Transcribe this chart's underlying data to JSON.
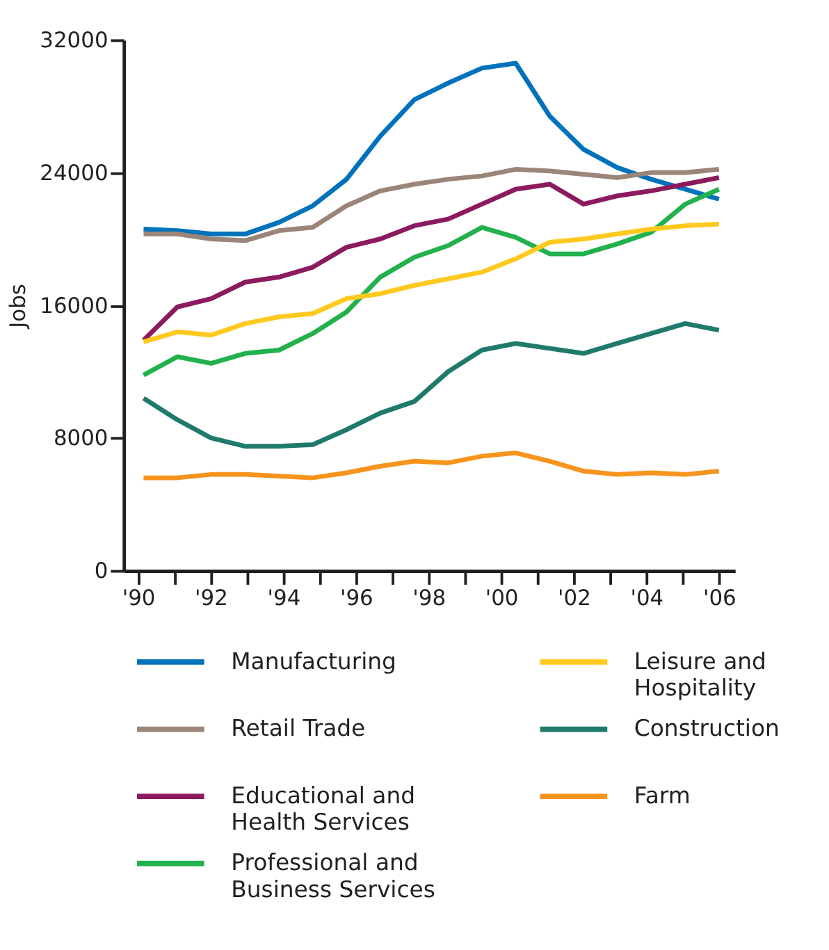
{
  "chart_data": {
    "type": "line",
    "ylabel": "Jobs",
    "x": [
      1990.15,
      1991.08,
      1992.01,
      1992.95,
      1993.88,
      1994.81,
      1995.74,
      1996.67,
      1997.61,
      1998.54,
      1999.47,
      2000.4,
      2001.34,
      2002.27,
      2003.2,
      2004.13,
      2005.07,
      2006.0
    ],
    "xlim": [
      1989.6,
      2006.44
    ],
    "xticks": [
      {
        "value": 1990,
        "label": "'90"
      },
      {
        "value": 1991,
        "label": null
      },
      {
        "value": 1992,
        "label": "'92"
      },
      {
        "value": 1993,
        "label": null
      },
      {
        "value": 1994,
        "label": "'94"
      },
      {
        "value": 1995,
        "label": null
      },
      {
        "value": 1996,
        "label": "'96"
      },
      {
        "value": 1997,
        "label": null
      },
      {
        "value": 1998,
        "label": "'98"
      },
      {
        "value": 1999,
        "label": null
      },
      {
        "value": 2000,
        "label": "'00"
      },
      {
        "value": 2001,
        "label": null
      },
      {
        "value": 2002,
        "label": "'02"
      },
      {
        "value": 2003,
        "label": null
      },
      {
        "value": 2004,
        "label": "'04"
      },
      {
        "value": 2005,
        "label": null
      },
      {
        "value": 2006,
        "label": "'06"
      }
    ],
    "ylim": [
      0,
      32000
    ],
    "yticks": [
      0,
      8000,
      16000,
      24000,
      32000
    ],
    "grid": false,
    "legend": "bottom",
    "marker": "none",
    "line_style": "solid",
    "series": [
      {
        "name": "Manufacturing",
        "color": "#0072bc",
        "values": [
          20600,
          20500,
          20300,
          20300,
          21000,
          22000,
          23600,
          26200,
          28400,
          29400,
          30300,
          30600,
          27400,
          25400,
          24300,
          23600,
          23000,
          22400
        ]
      },
      {
        "name": "Retail Trade",
        "color": "#9b8579",
        "values": [
          20300,
          20300,
          20000,
          19900,
          20500,
          20700,
          22000,
          22900,
          23300,
          23600,
          23800,
          24200,
          24100,
          23900,
          23700,
          24000,
          24000,
          24200
        ]
      },
      {
        "name": "Educational and Health Services",
        "color": "#8b1a5e",
        "values": [
          13900,
          15900,
          16400,
          17400,
          17700,
          18300,
          19500,
          20000,
          20800,
          21200,
          22100,
          23000,
          23300,
          22100,
          22600,
          22900,
          23300,
          23700
        ]
      },
      {
        "name": "Professional and Business Services",
        "color": "#22b14c",
        "values": [
          11800,
          12900,
          12500,
          13100,
          13300,
          14300,
          15600,
          17700,
          18900,
          19600,
          20700,
          20100,
          19100,
          19100,
          19700,
          20400,
          22100,
          23000
        ]
      },
      {
        "name": "Leisure and Hospitality",
        "color": "#ffc91f",
        "values": [
          13800,
          14400,
          14200,
          14900,
          15300,
          15500,
          16400,
          16700,
          17200,
          17600,
          18000,
          18800,
          19800,
          20000,
          20300,
          20600,
          20800,
          20900
        ]
      },
      {
        "name": "Construction",
        "color": "#1f7a6b",
        "values": [
          10400,
          9100,
          8000,
          7500,
          7500,
          7600,
          8500,
          9500,
          10200,
          12000,
          13300,
          13700,
          13400,
          13100,
          13700,
          14300,
          14900,
          14500
        ]
      },
      {
        "name": "Farm",
        "color": "#f7941d",
        "values": [
          5600,
          5600,
          5800,
          5800,
          5700,
          5600,
          5900,
          6300,
          6600,
          6500,
          6900,
          7100,
          6600,
          6000,
          5800,
          5900,
          5800,
          6000
        ]
      }
    ]
  }
}
